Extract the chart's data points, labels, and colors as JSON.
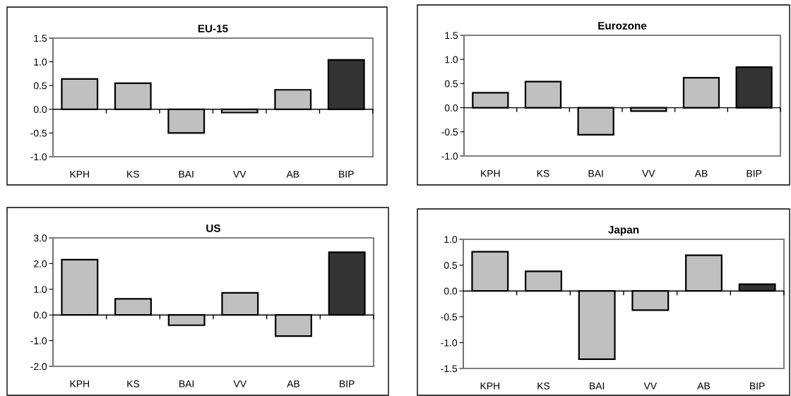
{
  "chart_data": [
    {
      "type": "bar",
      "title": "EU-15",
      "categories": [
        "KPH",
        "KS",
        "BAI",
        "VV",
        "AB",
        "BIP"
      ],
      "values": [
        0.64,
        0.55,
        -0.5,
        -0.07,
        0.41,
        1.04
      ],
      "colors": [
        "#c0c0c0",
        "#c0c0c0",
        "#c0c0c0",
        "#c0c0c0",
        "#c0c0c0",
        "#333333"
      ],
      "ylim": [
        -1.0,
        1.5
      ],
      "yticks": [
        {
          "value": -1.0,
          "label": "-1.0"
        },
        {
          "value": -0.5,
          "label": "-0.5"
        },
        {
          "value": 0.0,
          "label": "0.0"
        },
        {
          "value": 0.5,
          "label": "0.5"
        },
        {
          "value": 1.0,
          "label": "1.0"
        },
        {
          "value": 1.5,
          "label": "1.5"
        }
      ]
    },
    {
      "type": "bar",
      "title": "Eurozone",
      "categories": [
        "KPH",
        "KS",
        "BAI",
        "VV",
        "AB",
        "BIP"
      ],
      "values": [
        0.31,
        0.54,
        -0.56,
        -0.07,
        0.62,
        0.84
      ],
      "colors": [
        "#c0c0c0",
        "#c0c0c0",
        "#c0c0c0",
        "#c0c0c0",
        "#c0c0c0",
        "#333333"
      ],
      "ylim": [
        -1.0,
        1.5
      ],
      "yticks": [
        {
          "value": -1.0,
          "label": "-1.0"
        },
        {
          "value": -0.5,
          "label": "-0.5"
        },
        {
          "value": 0.0,
          "label": "0.0"
        },
        {
          "value": 0.5,
          "label": "0.5"
        },
        {
          "value": 1.0,
          "label": "1.0"
        },
        {
          "value": 1.5,
          "label": "1.5"
        }
      ]
    },
    {
      "type": "bar",
      "title": "US",
      "categories": [
        "KPH",
        "KS",
        "BAI",
        "VV",
        "AB",
        "BIP"
      ],
      "values": [
        2.15,
        0.63,
        -0.4,
        0.86,
        -0.82,
        2.44
      ],
      "colors": [
        "#c0c0c0",
        "#c0c0c0",
        "#c0c0c0",
        "#c0c0c0",
        "#c0c0c0",
        "#333333"
      ],
      "ylim": [
        -2.0,
        3.0
      ],
      "yticks": [
        {
          "value": -2.0,
          "label": "-2.0"
        },
        {
          "value": -1.0,
          "label": "-1.0"
        },
        {
          "value": 0.0,
          "label": "0.0"
        },
        {
          "value": 1.0,
          "label": "1.0"
        },
        {
          "value": 2.0,
          "label": "2.0"
        },
        {
          "value": 3.0,
          "label": "3.0"
        }
      ]
    },
    {
      "type": "bar",
      "title": "Japan",
      "categories": [
        "KPH",
        "KS",
        "BAI",
        "VV",
        "AB",
        "BIP"
      ],
      "values": [
        0.76,
        0.38,
        -1.32,
        -0.37,
        0.69,
        0.13
      ],
      "colors": [
        "#c0c0c0",
        "#c0c0c0",
        "#c0c0c0",
        "#c0c0c0",
        "#c0c0c0",
        "#333333"
      ],
      "ylim": [
        -1.5,
        1.0
      ],
      "yticks": [
        {
          "value": -1.5,
          "label": "-1.5"
        },
        {
          "value": -1.0,
          "label": "-1.0"
        },
        {
          "value": -0.5,
          "label": "-0.5"
        },
        {
          "value": 0.0,
          "label": "0.0"
        },
        {
          "value": 0.5,
          "label": "0.5"
        },
        {
          "value": 1.0,
          "label": "1.0"
        }
      ]
    }
  ]
}
